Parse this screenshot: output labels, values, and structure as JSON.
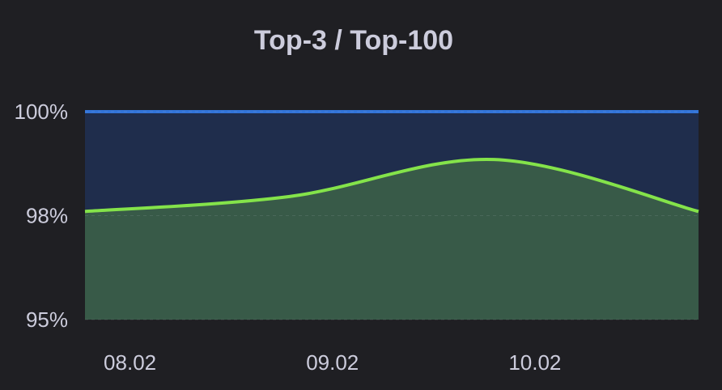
{
  "chart_data": {
    "type": "area",
    "title": "Top-3 / Top-100",
    "x": [
      0,
      1,
      2,
      3
    ],
    "xlim": [
      0,
      3
    ],
    "xticks": [
      {
        "value": 0.22,
        "label": "08.02"
      },
      {
        "value": 1.21,
        "label": "09.02"
      },
      {
        "value": 2.2,
        "label": "10.02"
      }
    ],
    "ylim": [
      95,
      100
    ],
    "yticks": [
      {
        "value": 95,
        "label": "95%"
      },
      {
        "value": 97.5,
        "label": "98%"
      },
      {
        "value": 100,
        "label": "100%"
      }
    ],
    "grid": true,
    "series": [
      {
        "color": "#3274d9",
        "fill": "#1f2d4c",
        "values": [
          100,
          100,
          100,
          100
        ]
      },
      {
        "color": "#84e34a",
        "fill": "#385a48",
        "values": [
          97.6,
          97.96,
          98.85,
          97.6
        ]
      }
    ]
  }
}
